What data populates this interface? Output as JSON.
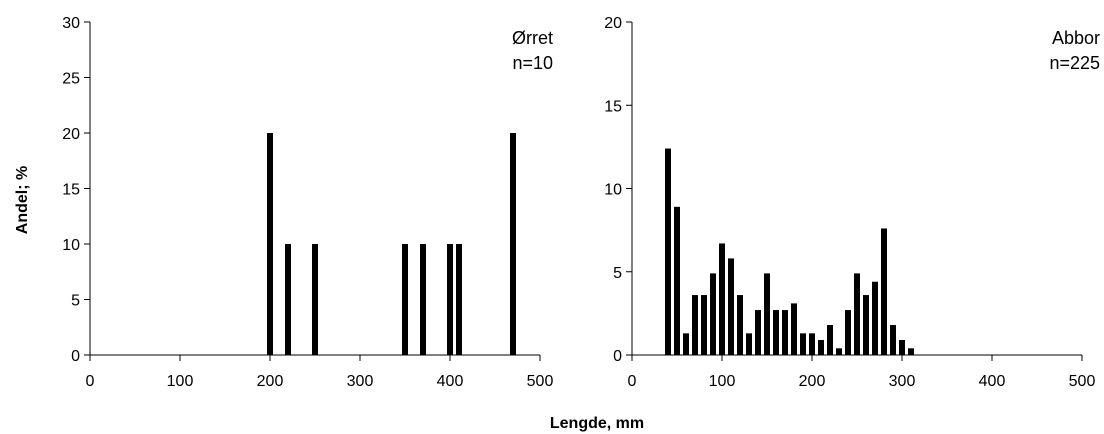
{
  "ylabel": "Andel; %",
  "xlabel": "Lengde, mm",
  "chart_data": [
    {
      "type": "bar",
      "species": "Ørret",
      "n_label": "n=10",
      "xlim": [
        0,
        500
      ],
      "ylim": [
        0,
        30
      ],
      "xticks": [
        "0",
        "100",
        "200",
        "300",
        "400",
        "500"
      ],
      "yticks": [
        "0",
        "5",
        "10",
        "15",
        "20",
        "25",
        "30"
      ],
      "x": [
        200,
        220,
        250,
        350,
        370,
        400,
        410,
        470
      ],
      "values": [
        20,
        10,
        10,
        10,
        10,
        10,
        10,
        20
      ]
    },
    {
      "type": "bar",
      "species": "Abbor",
      "n_label": "n=225",
      "xlim": [
        0,
        500
      ],
      "ylim": [
        0,
        20
      ],
      "xticks": [
        "0",
        "100",
        "200",
        "300",
        "400",
        "500"
      ],
      "yticks": [
        "0",
        "5",
        "10",
        "15",
        "20"
      ],
      "x": [
        40,
        50,
        60,
        70,
        80,
        90,
        100,
        110,
        120,
        130,
        140,
        150,
        160,
        170,
        180,
        190,
        200,
        210,
        220,
        230,
        240,
        250,
        260,
        270,
        280,
        290,
        300,
        310
      ],
      "values": [
        12.4,
        8.9,
        1.3,
        3.6,
        3.6,
        4.9,
        6.7,
        5.8,
        3.6,
        1.3,
        2.7,
        4.9,
        2.7,
        2.7,
        3.1,
        1.3,
        1.3,
        0.9,
        1.8,
        0.4,
        2.7,
        4.9,
        3.6,
        4.4,
        7.6,
        1.8,
        0.9,
        0.4
      ]
    }
  ]
}
